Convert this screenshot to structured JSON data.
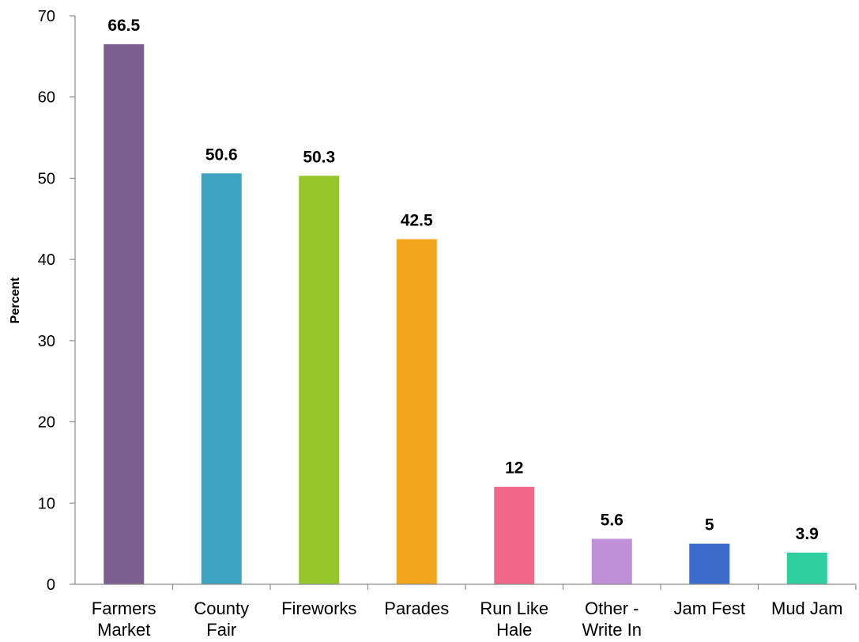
{
  "chart_data": {
    "type": "bar",
    "title": "",
    "xlabel": "",
    "ylabel": "Percent",
    "ylim": [
      0,
      70
    ],
    "yticks": [
      0,
      10,
      20,
      30,
      40,
      50,
      60,
      70
    ],
    "grid": false,
    "legend": "none",
    "categories": [
      [
        "Farmers",
        "Market"
      ],
      [
        "County",
        "Fair"
      ],
      [
        "Fireworks"
      ],
      [
        "Parades"
      ],
      [
        "Run Like",
        "Hale"
      ],
      [
        "Other -",
        "Write In"
      ],
      [
        "Jam Fest"
      ],
      [
        "Mud Jam"
      ]
    ],
    "values": [
      66.5,
      50.6,
      50.3,
      42.5,
      12,
      5.6,
      5,
      3.9
    ],
    "value_labels": [
      "66.5",
      "50.6",
      "50.3",
      "42.5",
      "12",
      "5.6",
      "5",
      "3.9"
    ],
    "colors": [
      "#7b5f8e",
      "#3fa3c2",
      "#96c72a",
      "#f3a61c",
      "#f06788",
      "#bf8fd7",
      "#3b6bcb",
      "#2fcfa0"
    ]
  }
}
